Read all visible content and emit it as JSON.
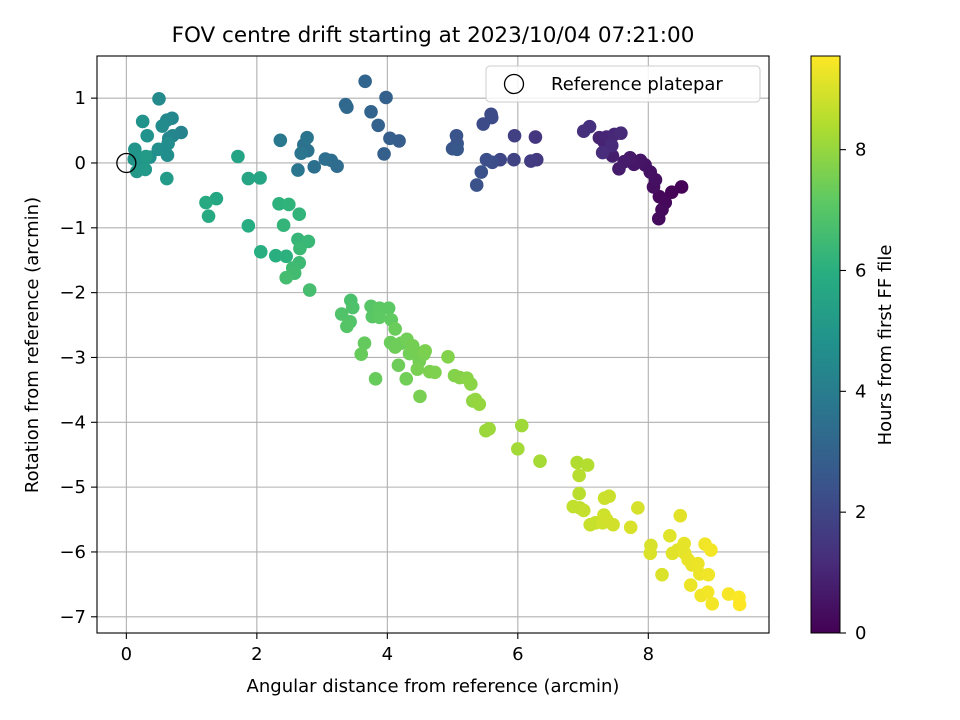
{
  "chart_data": {
    "type": "scatter",
    "title": "FOV centre drift starting at 2023/10/04 07:21:00",
    "xlabel": "Angular distance from reference (arcmin)",
    "ylabel": "Rotation from reference (arcmin)",
    "xlim": [
      -0.45,
      9.85
    ],
    "ylim": [
      -7.25,
      1.65
    ],
    "xticks": [
      0,
      2,
      4,
      6,
      8
    ],
    "yticks": [
      1,
      0,
      -1,
      -2,
      -3,
      -4,
      -5,
      -6,
      -7
    ],
    "xtick_labels": [
      "0",
      "2",
      "4",
      "6",
      "8"
    ],
    "ytick_labels": [
      "1",
      "0",
      "−1",
      "−2",
      "−3",
      "−4",
      "−5",
      "−6",
      "−7"
    ],
    "grid": true,
    "legend": {
      "placement": "top-right",
      "entries": [
        "Reference platepar"
      ]
    },
    "reference_point": {
      "x": 0,
      "y": 0
    },
    "colorbar": {
      "label": "Hours from first FF file",
      "colormap": "viridis",
      "range": [
        0,
        9.55
      ],
      "ticks": [
        0,
        2,
        4,
        6,
        8
      ],
      "tick_labels": [
        "0",
        "2",
        "4",
        "6",
        "8"
      ]
    },
    "points": [
      [
        8.51,
        -0.37,
        0.05
      ],
      [
        8.36,
        -0.45,
        0.1
      ],
      [
        8.17,
        -0.52,
        0.15
      ],
      [
        8.26,
        -0.61,
        0.2
      ],
      [
        8.21,
        -0.72,
        0.25
      ],
      [
        8.16,
        -0.86,
        0.3
      ],
      [
        8.08,
        -0.37,
        0.35
      ],
      [
        8.11,
        -0.26,
        0.4
      ],
      [
        8.03,
        -0.14,
        0.45
      ],
      [
        7.95,
        -0.03,
        0.5
      ],
      [
        7.88,
        0.04,
        0.55
      ],
      [
        7.78,
        -0.02,
        0.6
      ],
      [
        7.72,
        0.08,
        0.65
      ],
      [
        7.63,
        0.02,
        0.7
      ],
      [
        7.55,
        -0.09,
        0.75
      ],
      [
        7.45,
        0.11,
        0.8
      ],
      [
        7.38,
        0.22,
        0.85
      ],
      [
        7.32,
        0.33,
        0.9
      ],
      [
        7.25,
        0.39,
        0.95
      ],
      [
        7.36,
        0.4,
        1.0
      ],
      [
        7.48,
        0.44,
        1.05
      ],
      [
        7.58,
        0.46,
        1.1
      ],
      [
        7.44,
        0.27,
        1.15
      ],
      [
        7.3,
        0.16,
        1.2
      ],
      [
        7.1,
        0.56,
        1.25
      ],
      [
        7.01,
        0.49,
        1.3
      ],
      [
        6.27,
        0.4,
        1.5
      ],
      [
        6.29,
        0.05,
        1.6
      ],
      [
        6.2,
        0.03,
        1.7
      ],
      [
        5.95,
        0.42,
        1.8
      ],
      [
        5.94,
        0.05,
        1.9
      ],
      [
        5.73,
        0.05,
        2.0
      ],
      [
        5.59,
        0.75,
        2.1
      ],
      [
        5.6,
        0.7,
        2.15
      ],
      [
        5.47,
        0.6,
        2.2
      ],
      [
        5.61,
        0.01,
        2.25
      ],
      [
        5.52,
        0.05,
        2.3
      ],
      [
        5.44,
        -0.14,
        2.35
      ],
      [
        5.37,
        -0.34,
        2.4
      ],
      [
        5.06,
        0.42,
        2.45
      ],
      [
        5.07,
        0.3,
        2.5
      ],
      [
        5.0,
        0.22,
        2.55
      ],
      [
        5.07,
        0.21,
        2.6
      ],
      [
        4.18,
        0.34,
        2.8
      ],
      [
        4.04,
        0.38,
        2.85
      ],
      [
        3.95,
        0.14,
        2.9
      ],
      [
        3.98,
        1.01,
        2.95
      ],
      [
        3.86,
        0.58,
        3.0
      ],
      [
        3.75,
        0.79,
        3.05
      ],
      [
        3.66,
        1.26,
        3.1
      ],
      [
        3.38,
        0.86,
        3.2
      ],
      [
        3.36,
        0.9,
        3.25
      ],
      [
        3.23,
        -0.05,
        3.35
      ],
      [
        3.14,
        0.04,
        3.4
      ],
      [
        3.05,
        0.06,
        3.45
      ],
      [
        2.88,
        -0.06,
        3.5
      ],
      [
        2.78,
        0.19,
        3.55
      ],
      [
        2.72,
        0.28,
        3.6
      ],
      [
        2.77,
        0.39,
        3.65
      ],
      [
        2.68,
        0.15,
        3.7
      ],
      [
        2.63,
        -0.11,
        3.75
      ],
      [
        2.36,
        0.35,
        3.8
      ],
      [
        0.84,
        0.47,
        4.2
      ],
      [
        0.71,
        0.42,
        4.3
      ],
      [
        0.65,
        0.38,
        4.35
      ],
      [
        0.7,
        0.69,
        4.4
      ],
      [
        0.62,
        0.66,
        4.45
      ],
      [
        0.5,
        0.99,
        4.5
      ],
      [
        0.55,
        0.57,
        4.55
      ],
      [
        0.64,
        0.3,
        4.6
      ],
      [
        0.63,
        0.12,
        4.65
      ],
      [
        0.49,
        0.21,
        4.7
      ],
      [
        0.36,
        0.09,
        4.75
      ],
      [
        0.32,
        0.42,
        4.8
      ],
      [
        0.25,
        0.64,
        4.85
      ],
      [
        0.23,
        0.06,
        4.9
      ],
      [
        0.13,
        0.21,
        4.95
      ],
      [
        0.12,
        0.06,
        5.0
      ],
      [
        0.16,
        -0.13,
        5.05
      ],
      [
        0.29,
        -0.1,
        5.1
      ],
      [
        0.3,
        0.1,
        5.15
      ],
      [
        0.62,
        -0.24,
        5.2
      ],
      [
        1.71,
        0.1,
        5.5
      ],
      [
        1.87,
        -0.24,
        5.55
      ],
      [
        2.05,
        -0.23,
        5.6
      ],
      [
        1.38,
        -0.55,
        5.7
      ],
      [
        1.22,
        -0.61,
        5.75
      ],
      [
        1.26,
        -0.82,
        5.8
      ],
      [
        1.87,
        -0.97,
        5.9
      ],
      [
        2.06,
        -1.37,
        5.95
      ],
      [
        2.29,
        -1.43,
        6.0
      ],
      [
        2.45,
        -1.44,
        6.05
      ],
      [
        2.34,
        -0.63,
        6.1
      ],
      [
        2.49,
        -0.64,
        6.15
      ],
      [
        2.65,
        -0.79,
        6.2
      ],
      [
        2.41,
        -0.96,
        6.25
      ],
      [
        2.63,
        -1.18,
        6.3
      ],
      [
        2.79,
        -1.21,
        6.35
      ],
      [
        2.66,
        -1.32,
        6.4
      ],
      [
        2.65,
        -1.54,
        6.45
      ],
      [
        2.55,
        -1.62,
        6.5
      ],
      [
        2.58,
        -1.7,
        6.55
      ],
      [
        2.45,
        -1.77,
        6.6
      ],
      [
        2.81,
        -1.96,
        6.65
      ],
      [
        3.44,
        -2.12,
        6.75
      ],
      [
        3.47,
        -2.23,
        6.8
      ],
      [
        3.3,
        -2.33,
        6.85
      ],
      [
        3.43,
        -2.45,
        6.9
      ],
      [
        3.38,
        -2.52,
        6.95
      ],
      [
        3.75,
        -2.21,
        7.0
      ],
      [
        3.77,
        -2.37,
        7.05
      ],
      [
        3.88,
        -2.24,
        7.1
      ],
      [
        4.02,
        -2.24,
        7.1
      ],
      [
        3.88,
        -2.38,
        7.15
      ],
      [
        4.06,
        -2.42,
        7.2
      ],
      [
        3.65,
        -2.78,
        7.25
      ],
      [
        3.6,
        -2.95,
        7.3
      ],
      [
        3.82,
        -3.33,
        7.3
      ],
      [
        4.05,
        -2.77,
        7.35
      ],
      [
        4.12,
        -2.56,
        7.35
      ],
      [
        4.12,
        -2.84,
        7.4
      ],
      [
        4.21,
        -2.78,
        7.4
      ],
      [
        4.17,
        -3.12,
        7.4
      ],
      [
        4.3,
        -2.72,
        7.45
      ],
      [
        4.34,
        -2.94,
        7.45
      ],
      [
        4.29,
        -3.33,
        7.45
      ],
      [
        4.39,
        -2.82,
        7.5
      ],
      [
        4.44,
        -2.92,
        7.5
      ],
      [
        4.49,
        -3.06,
        7.5
      ],
      [
        4.56,
        -2.95,
        7.55
      ],
      [
        4.46,
        -3.18,
        7.55
      ],
      [
        4.5,
        -3.6,
        7.55
      ],
      [
        4.58,
        -2.9,
        7.6
      ],
      [
        4.65,
        -3.22,
        7.6
      ],
      [
        4.73,
        -3.23,
        7.65
      ],
      [
        4.93,
        -2.99,
        7.7
      ],
      [
        5.03,
        -3.28,
        7.7
      ],
      [
        5.11,
        -3.31,
        7.75
      ],
      [
        5.22,
        -3.32,
        7.8
      ],
      [
        5.28,
        -3.41,
        7.85
      ],
      [
        5.31,
        -3.67,
        7.9
      ],
      [
        5.35,
        -3.65,
        7.95
      ],
      [
        5.41,
        -3.72,
        8.0
      ],
      [
        5.51,
        -4.13,
        8.05
      ],
      [
        5.56,
        -4.1,
        8.1
      ],
      [
        6.06,
        -4.05,
        8.15
      ],
      [
        6.0,
        -4.41,
        8.2
      ],
      [
        6.34,
        -4.6,
        8.25
      ],
      [
        6.91,
        -4.62,
        8.4
      ],
      [
        7.07,
        -4.66,
        8.45
      ],
      [
        6.94,
        -4.82,
        8.5
      ],
      [
        6.94,
        -5.1,
        8.55
      ],
      [
        6.95,
        -5.32,
        8.6
      ],
      [
        6.85,
        -5.3,
        8.65
      ],
      [
        7.01,
        -5.36,
        8.7
      ],
      [
        7.11,
        -5.58,
        8.75
      ],
      [
        7.19,
        -5.55,
        8.75
      ],
      [
        7.33,
        -5.17,
        8.8
      ],
      [
        7.4,
        -5.14,
        8.8
      ],
      [
        7.32,
        -5.43,
        8.85
      ],
      [
        7.3,
        -5.55,
        8.85
      ],
      [
        7.36,
        -5.5,
        8.9
      ],
      [
        7.46,
        -5.58,
        8.9
      ],
      [
        7.84,
        -5.32,
        8.95
      ],
      [
        7.73,
        -5.62,
        9.0
      ],
      [
        8.04,
        -5.9,
        9.0
      ],
      [
        8.03,
        -6.02,
        9.05
      ],
      [
        8.21,
        -6.35,
        9.05
      ],
      [
        8.33,
        -5.75,
        9.1
      ],
      [
        8.37,
        -6.02,
        9.1
      ],
      [
        8.49,
        -5.44,
        9.15
      ],
      [
        8.45,
        -5.97,
        9.15
      ],
      [
        8.56,
        -6.02,
        9.2
      ],
      [
        8.55,
        -5.87,
        9.2
      ],
      [
        8.61,
        -6.12,
        9.25
      ],
      [
        8.67,
        -6.2,
        9.25
      ],
      [
        8.65,
        -6.51,
        9.3
      ],
      [
        8.76,
        -6.18,
        9.3
      ],
      [
        8.79,
        -6.34,
        9.3
      ],
      [
        8.81,
        -6.67,
        9.35
      ],
      [
        8.87,
        -5.88,
        9.35
      ],
      [
        8.92,
        -6.35,
        9.35
      ],
      [
        8.91,
        -6.62,
        9.4
      ],
      [
        8.96,
        -5.97,
        9.4
      ],
      [
        8.98,
        -6.8,
        9.4
      ],
      [
        9.23,
        -6.65,
        9.45
      ],
      [
        9.39,
        -6.7,
        9.5
      ],
      [
        9.4,
        -6.81,
        9.55
      ]
    ]
  }
}
